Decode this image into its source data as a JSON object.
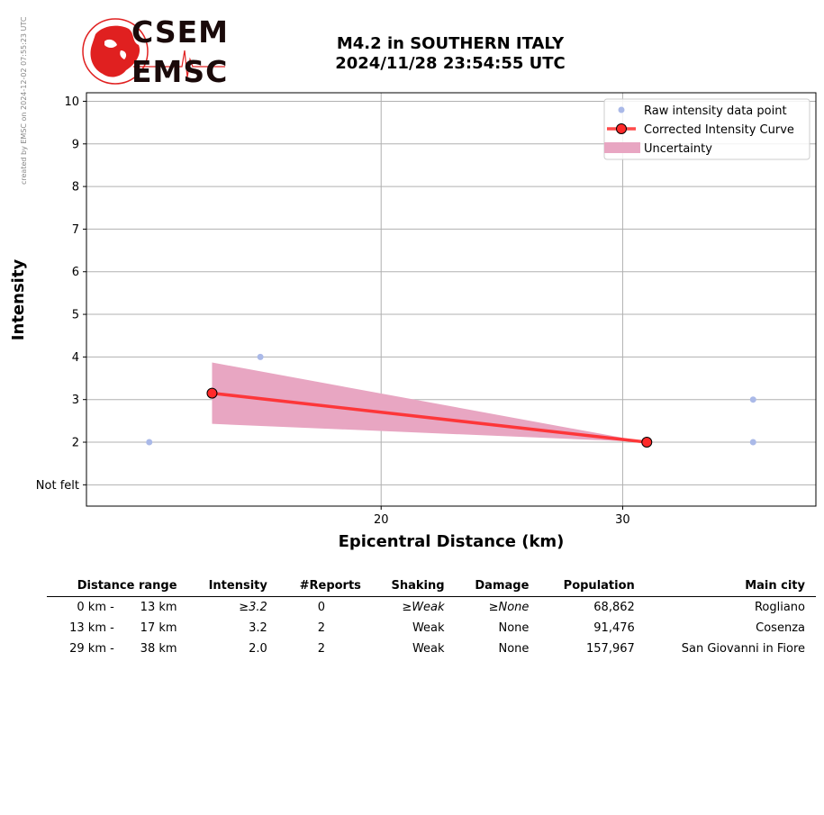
{
  "watermark": "created by EMSC on 2024-12-02 07:55:23 UTC",
  "logo": {
    "line1": "CSEM",
    "line2": "EMSC"
  },
  "colors": {
    "raw_point": "#aab9e8",
    "curve": "#ff2a2a",
    "uncertainty": "#e8a6c2",
    "grid": "#b0b0b0",
    "logo_red": "#e02020"
  },
  "chart_data": {
    "type": "line",
    "title": "M4.2 in SOUTHERN ITALY",
    "subtitle": "2024/11/28 23:54:55 UTC",
    "xlabel": "Epicentral Distance (km)",
    "ylabel": "Intensity",
    "xlim": [
      7.8,
      38.0
    ],
    "ylim": [
      0.5,
      10.2
    ],
    "x_ticks": [
      20,
      30
    ],
    "y_ticks": [
      1,
      2,
      3,
      4,
      5,
      6,
      7,
      8,
      9,
      10
    ],
    "y_tick_labels": [
      "Not felt",
      "2",
      "3",
      "4",
      "5",
      "6",
      "7",
      "8",
      "9",
      "10"
    ],
    "grid": true,
    "legend_position": "top-right",
    "legend": [
      "Raw intensity data point",
      "Corrected Intensity Curve",
      "Uncertainty"
    ],
    "raw_points": [
      {
        "x": 10.4,
        "y": 2
      },
      {
        "x": 15.0,
        "y": 4
      },
      {
        "x": 35.4,
        "y": 3
      },
      {
        "x": 35.4,
        "y": 2
      }
    ],
    "curve": [
      {
        "x": 13.0,
        "y": 3.15
      },
      {
        "x": 31.0,
        "y": 2.0
      }
    ],
    "uncertainty": {
      "x": [
        13.0,
        31.0
      ],
      "upper": [
        3.87,
        2.0
      ],
      "lower": [
        2.43,
        2.0
      ]
    }
  },
  "table": {
    "headers": [
      "Distance range",
      "Intensity",
      "#Reports",
      "Shaking",
      "Damage",
      "Population",
      "Main city"
    ],
    "rows": [
      {
        "from": "0 km -",
        "to": "13 km",
        "intensity": "≥3.2",
        "reports": "0",
        "shaking": "≥Weak",
        "damage": "≥None",
        "population": "68,862",
        "city": "Rogliano"
      },
      {
        "from": "13 km -",
        "to": "17 km",
        "intensity": "3.2",
        "reports": "2",
        "shaking": "Weak",
        "damage": "None",
        "population": "91,476",
        "city": "Cosenza"
      },
      {
        "from": "29 km -",
        "to": "38 km",
        "intensity": "2.0",
        "reports": "2",
        "shaking": "Weak",
        "damage": "None",
        "population": "157,967",
        "city": "San Giovanni in Fiore"
      }
    ]
  }
}
